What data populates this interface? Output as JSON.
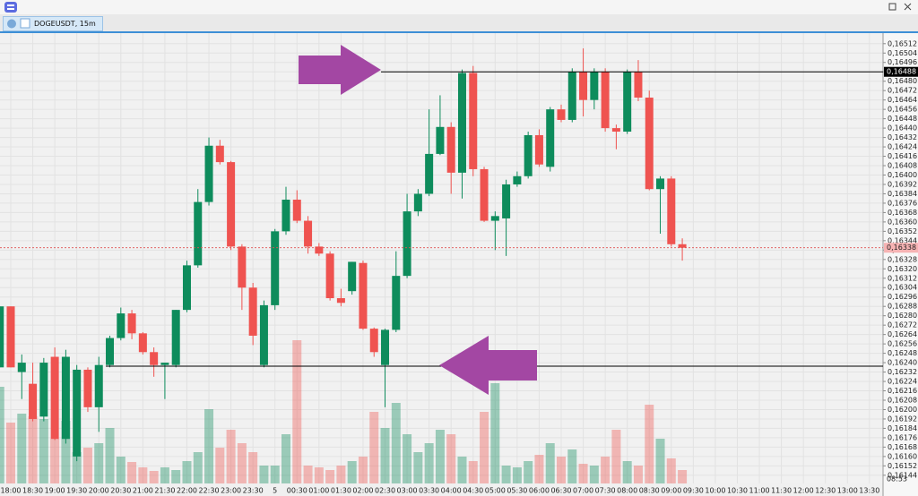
{
  "tab": {
    "label": "DOGEUSDT, 15m"
  },
  "clock": "08:53",
  "chart_data": {
    "type": "candlestick",
    "categories": [
      null,
      "18:00",
      null,
      "18:30",
      null,
      "19:00",
      null,
      "19:30",
      null,
      "20:00",
      null,
      "20:30",
      null,
      "21:00",
      null,
      "21:30",
      null,
      "22:00",
      null,
      "22:30",
      null,
      "23:00",
      null,
      "23:30",
      null,
      "5",
      null,
      "00:30",
      null,
      "01:00",
      null,
      "01:30",
      null,
      "02:00",
      null,
      "02:30",
      null,
      "03:00",
      null,
      "03:30",
      null,
      "04:00",
      null,
      "04:30",
      null,
      "05:00",
      null,
      "05:30",
      null,
      "06:00",
      null,
      "06:30",
      null,
      "07:00",
      null,
      "07:30",
      null,
      "08:00",
      null,
      "08:30",
      null,
      "09:00",
      null,
      "09:30",
      null,
      "10:00",
      null,
      "10:30",
      null,
      "11:00",
      null,
      "11:30",
      null,
      "12:00",
      null,
      "12:30",
      null,
      "13:00",
      null,
      "13:30"
    ],
    "open": [
      0.16236,
      0.16288,
      0.16232,
      0.16222,
      0.16194,
      0.16245,
      0.16175,
      0.1616,
      0.16234,
      0.16202,
      0.16238,
      0.16261,
      0.16282,
      0.16265,
      0.16249,
      0.16238,
      0.16238,
      0.16285,
      0.16323,
      0.16377,
      0.16425,
      0.16411,
      0.16339,
      0.16304,
      0.16238,
      0.16289,
      0.16352,
      0.16379,
      0.16361,
      0.16339,
      0.16333,
      0.16295,
      0.16301,
      0.16325,
      0.16269,
      0.16238,
      0.16268,
      0.16314,
      0.16369,
      0.16384,
      0.16418,
      0.16441,
      0.16402,
      0.16487,
      0.16405,
      0.16361,
      0.16363,
      0.16392,
      0.16399,
      0.16434,
      0.16407,
      0.16456,
      0.16447,
      0.16488,
      0.16464,
      0.16488,
      0.1644,
      0.16437,
      0.16488,
      0.16466,
      0.16388,
      0.16397,
      0.16341,
      null,
      null,
      null,
      null,
      null,
      null,
      null,
      null,
      null,
      null,
      null,
      null,
      null,
      null,
      null,
      null,
      null
    ],
    "high": [
      0.16288,
      0.16288,
      0.16247,
      0.1624,
      0.16244,
      0.16253,
      0.16251,
      0.16238,
      0.16236,
      0.16245,
      0.16263,
      0.16287,
      0.16285,
      0.16266,
      0.16253,
      0.1624,
      0.16285,
      0.16327,
      0.16388,
      0.16432,
      0.1643,
      0.16412,
      0.16341,
      0.16308,
      0.16293,
      0.16354,
      0.1639,
      0.16387,
      0.16365,
      0.16342,
      0.16335,
      0.16303,
      0.16326,
      0.16327,
      0.1627,
      0.16269,
      0.16335,
      0.16384,
      0.16388,
      0.16456,
      0.16468,
      0.16445,
      0.1649,
      0.16493,
      0.16407,
      0.16369,
      0.16396,
      0.16403,
      0.16437,
      0.16439,
      0.16458,
      0.1646,
      0.16491,
      0.16508,
      0.16491,
      0.16491,
      0.16443,
      0.1649,
      0.16498,
      0.16472,
      0.16399,
      0.16399,
      0.16346,
      null,
      null,
      null,
      null,
      null,
      null,
      null,
      null,
      null,
      null,
      null,
      null,
      null,
      null,
      null,
      null,
      null
    ],
    "low": [
      0.16236,
      0.16236,
      0.16209,
      0.1619,
      0.1619,
      0.16174,
      0.16171,
      0.16156,
      0.16198,
      0.16181,
      0.16236,
      0.16259,
      0.1626,
      0.16247,
      0.16228,
      0.16209,
      0.16236,
      0.16283,
      0.16321,
      0.16374,
      0.16409,
      0.16336,
      0.16285,
      0.16255,
      0.16236,
      0.16285,
      0.16349,
      0.16359,
      0.16333,
      0.16331,
      0.16293,
      0.16288,
      0.16298,
      0.16268,
      0.16245,
      0.16202,
      0.16266,
      0.16312,
      0.16365,
      0.16382,
      0.16417,
      0.16384,
      0.1638,
      0.16399,
      0.1636,
      0.16336,
      0.16331,
      0.1639,
      0.16397,
      0.16407,
      0.16403,
      0.16445,
      0.16445,
      0.1645,
      0.16456,
      0.16437,
      0.16422,
      0.16435,
      0.16463,
      0.16387,
      0.1635,
      0.16339,
      0.16327,
      null,
      null,
      null,
      null,
      null,
      null,
      null,
      null,
      null,
      null,
      null,
      null,
      null,
      null,
      null,
      null,
      null
    ],
    "close": [
      0.16288,
      0.16236,
      0.1624,
      0.16192,
      0.1624,
      0.16175,
      0.16245,
      0.16234,
      0.16202,
      0.16238,
      0.16261,
      0.16282,
      0.16265,
      0.16249,
      0.16238,
      0.1624,
      0.16285,
      0.16323,
      0.16377,
      0.16425,
      0.16411,
      0.16339,
      0.16304,
      0.16263,
      0.16289,
      0.16352,
      0.16379,
      0.16361,
      0.16339,
      0.16333,
      0.16295,
      0.16291,
      0.16326,
      0.16269,
      0.16249,
      0.16268,
      0.16314,
      0.16369,
      0.16384,
      0.16418,
      0.16441,
      0.16402,
      0.16487,
      0.16405,
      0.16361,
      0.16365,
      0.16392,
      0.16399,
      0.16434,
      0.16409,
      0.16456,
      0.16447,
      0.16488,
      0.16464,
      0.16488,
      0.1644,
      0.16437,
      0.16488,
      0.16466,
      0.16388,
      0.16397,
      0.16341,
      0.16338,
      null,
      null,
      null,
      null,
      null,
      null,
      null,
      null,
      null,
      null,
      null,
      null,
      null,
      null,
      null,
      null,
      null
    ],
    "volume": [
      108,
      68,
      78,
      75,
      72,
      50,
      70,
      35,
      40,
      45,
      62,
      30,
      24,
      18,
      14,
      18,
      15,
      25,
      35,
      83,
      40,
      60,
      45,
      35,
      20,
      20,
      55,
      160,
      20,
      18,
      15,
      20,
      25,
      30,
      80,
      62,
      90,
      55,
      35,
      45,
      60,
      55,
      30,
      25,
      80,
      112,
      20,
      18,
      25,
      32,
      45,
      30,
      38,
      22,
      20,
      30,
      60,
      25,
      20,
      88,
      50,
      28,
      15,
      null,
      null,
      null,
      null,
      null,
      null,
      null,
      null,
      null,
      null,
      null,
      null,
      null,
      null,
      null,
      null,
      null
    ],
    "up_color": "#0e8c5c",
    "down_color": "#ef5350",
    "ylim": [
      0.16137,
      0.16521
    ],
    "yticks": [
      {
        "value": 0.16144,
        "label": "0,16144"
      },
      {
        "value": 0.16152,
        "label": "0,16152"
      },
      {
        "value": 0.1616,
        "label": "0,16160"
      },
      {
        "value": 0.16168,
        "label": "0,16168"
      },
      {
        "value": 0.16176,
        "label": "0,16176"
      },
      {
        "value": 0.16184,
        "label": "0,16184"
      },
      {
        "value": 0.16192,
        "label": "0,16192"
      },
      {
        "value": 0.162,
        "label": "0,16200"
      },
      {
        "value": 0.16208,
        "label": "0,16208"
      },
      {
        "value": 0.16216,
        "label": "0,16216"
      },
      {
        "value": 0.16224,
        "label": "0,16224"
      },
      {
        "value": 0.16232,
        "label": "0,16232"
      },
      {
        "value": 0.1624,
        "label": "0,16240"
      },
      {
        "value": 0.16248,
        "label": "0,16248"
      },
      {
        "value": 0.16256,
        "label": "0,16256"
      },
      {
        "value": 0.16264,
        "label": "0,16264"
      },
      {
        "value": 0.16272,
        "label": "0,16272"
      },
      {
        "value": 0.1628,
        "label": "0,16280"
      },
      {
        "value": 0.16288,
        "label": "0,16288"
      },
      {
        "value": 0.16296,
        "label": "0,16296"
      },
      {
        "value": 0.16304,
        "label": "0,16304"
      },
      {
        "value": 0.16312,
        "label": "0,16312"
      },
      {
        "value": 0.1632,
        "label": "0,16320"
      },
      {
        "value": 0.16328,
        "label": "0,16328"
      },
      {
        "value": 0.16336,
        "label": "0,16336"
      },
      {
        "value": 0.16344,
        "label": "0,16344"
      },
      {
        "value": 0.16352,
        "label": "0,16352"
      },
      {
        "value": 0.1636,
        "label": "0,16360"
      },
      {
        "value": 0.16368,
        "label": "0,16368"
      },
      {
        "value": 0.16376,
        "label": "0,16376"
      },
      {
        "value": 0.16384,
        "label": "0,16384"
      },
      {
        "value": 0.16392,
        "label": "0,16392"
      },
      {
        "value": 0.164,
        "label": "0,16400"
      },
      {
        "value": 0.16408,
        "label": "0,16408"
      },
      {
        "value": 0.16416,
        "label": "0,16416"
      },
      {
        "value": 0.16424,
        "label": "0,16424"
      },
      {
        "value": 0.16432,
        "label": "0,16432"
      },
      {
        "value": 0.1644,
        "label": "0,16440"
      },
      {
        "value": 0.16448,
        "label": "0,16448"
      },
      {
        "value": 0.16456,
        "label": "0,16456"
      },
      {
        "value": 0.16464,
        "label": "0,16464"
      },
      {
        "value": 0.16472,
        "label": "0,16472"
      },
      {
        "value": 0.1648,
        "label": "0,16480"
      },
      {
        "value": 0.16488,
        "label": "0,16488"
      },
      {
        "value": 0.16496,
        "label": "0,16496"
      },
      {
        "value": 0.16504,
        "label": "0,16504"
      },
      {
        "value": 0.16512,
        "label": "0,16512"
      }
    ],
    "grid": true,
    "hlines": [
      {
        "value": 0.16488,
        "label": "0,16488",
        "color": "#000000"
      },
      {
        "value": 0.16338,
        "label": "0,16338",
        "color": "#e05050"
      },
      {
        "value": 0.16237,
        "color": "#000000"
      }
    ]
  }
}
